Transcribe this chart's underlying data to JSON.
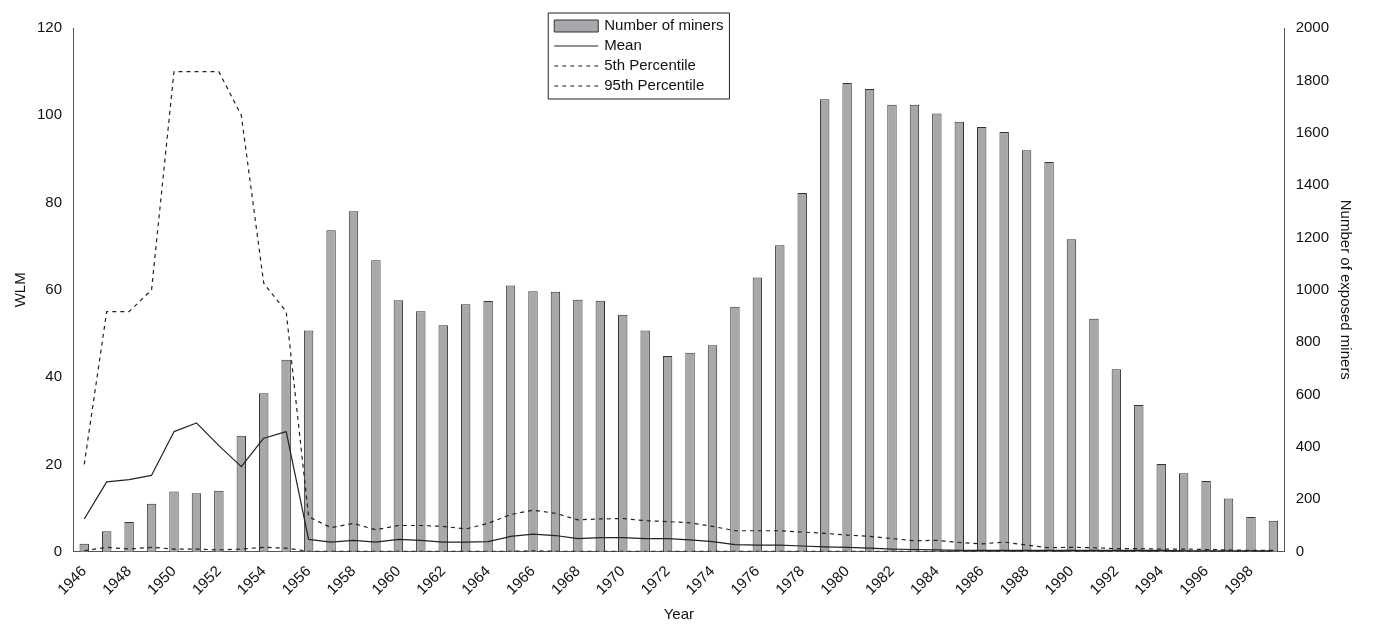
{
  "chart_data": {
    "type": "bar",
    "xlabel": "Year",
    "ylabel": "WLM",
    "y2label": "Number of exposed miners",
    "categories": [
      "1946",
      null,
      "1948",
      null,
      "1950",
      null,
      "1952",
      null,
      "1954",
      null,
      "1956",
      null,
      "1958",
      null,
      "1960",
      null,
      "1962",
      null,
      "1964",
      null,
      "1966",
      null,
      "1968",
      null,
      "1970",
      null,
      "1972",
      null,
      "1974",
      null,
      "1976",
      null,
      "1978",
      null,
      "1980",
      null,
      "1982",
      null,
      "1984",
      null,
      "1986",
      null,
      "1988",
      null,
      "1990",
      null,
      "1992",
      null,
      "1994",
      null,
      "1996",
      null,
      "1998",
      null
    ],
    "series": [
      {
        "name": "Number of miners",
        "axis": "y2",
        "color": "#a7a8ac",
        "values": [
          30,
          78,
          113,
          183,
          230,
          223,
          233,
          443,
          605,
          733,
          845,
          1228,
          1300,
          1113,
          960,
          918,
          865,
          945,
          957,
          1017,
          995,
          993,
          962,
          958,
          905,
          845,
          747,
          760,
          788,
          935,
          1047,
          1170,
          1370,
          1728,
          1790,
          1767,
          1707,
          1707,
          1673,
          1642,
          1622,
          1603,
          1533,
          1488,
          1193,
          890,
          697,
          560,
          335,
          300,
          270,
          203,
          132,
          118
        ]
      },
      {
        "name": "Mean",
        "type": "line",
        "line_style": "solid",
        "color": "#222222",
        "values": [
          7.5,
          16,
          16.5,
          17.5,
          27.5,
          29.5,
          24.3,
          19.5,
          26,
          27.5,
          2.8,
          2.2,
          2.6,
          2.2,
          2.8,
          2.6,
          2.2,
          2.2,
          2.3,
          3.5,
          4,
          3.7,
          3,
          3.2,
          3.2,
          3,
          3,
          2.7,
          2.3,
          1.6,
          1.5,
          1.5,
          1.3,
          1.1,
          1,
          0.8,
          0.6,
          0.5,
          0.4,
          0.3,
          0.3,
          0.3,
          0.3,
          0.3,
          0.3,
          0.3,
          0.3,
          0.3,
          0.3,
          0.2,
          0.2,
          0.2,
          0.2,
          0.2
        ]
      },
      {
        "name": "5th Percentile",
        "type": "line",
        "line_style": "dashed",
        "color": "#222222",
        "values": [
          0.2,
          1,
          0.6,
          1,
          0.6,
          0.6,
          0.4,
          0.6,
          1,
          0.8,
          0.1,
          0.1,
          0.1,
          0.1,
          0.1,
          0.1,
          0.1,
          0.1,
          0.1,
          0.1,
          0.2,
          0.1,
          0.1,
          0.1,
          0.1,
          0.1,
          0.1,
          0.1,
          0.1,
          0.1,
          0.1,
          0.1,
          0.1,
          0.1,
          0.1,
          0.1,
          0.1,
          0.1,
          0.1,
          0.1,
          0.1,
          0.1,
          0.1,
          0.1,
          0.1,
          0.1,
          0.1,
          0.1,
          0.1,
          0.1,
          0.1,
          0.1,
          0.1,
          0.1
        ]
      },
      {
        "name": "95th Percentile",
        "type": "line",
        "line_style": "dashed",
        "color": "#222222",
        "values": [
          20,
          55,
          55,
          60,
          110,
          110,
          110,
          100,
          61.5,
          55,
          8,
          5.5,
          6.5,
          5,
          6,
          6,
          5.8,
          5.2,
          6.5,
          8.5,
          9.5,
          8.8,
          7.3,
          7.5,
          7.6,
          7.1,
          6.9,
          6.6,
          5.8,
          4.8,
          4.8,
          4.8,
          4.5,
          4.2,
          3.8,
          3.5,
          3,
          2.5,
          2.6,
          2.1,
          1.8,
          2.2,
          1.5,
          0.9,
          1,
          0.9,
          0.7,
          0.7,
          0.6,
          0.6,
          0.5,
          0.4,
          0.3,
          0.3
        ]
      }
    ],
    "ylim": [
      0,
      120
    ],
    "yticks": [
      0,
      20,
      40,
      60,
      80,
      100,
      120
    ],
    "y2lim": [
      0,
      2000
    ],
    "y2ticks": [
      0,
      200,
      400,
      600,
      800,
      1000,
      1200,
      1400,
      1600,
      1800,
      2000
    ],
    "grid": false,
    "legend": "top",
    "marker": "none"
  }
}
